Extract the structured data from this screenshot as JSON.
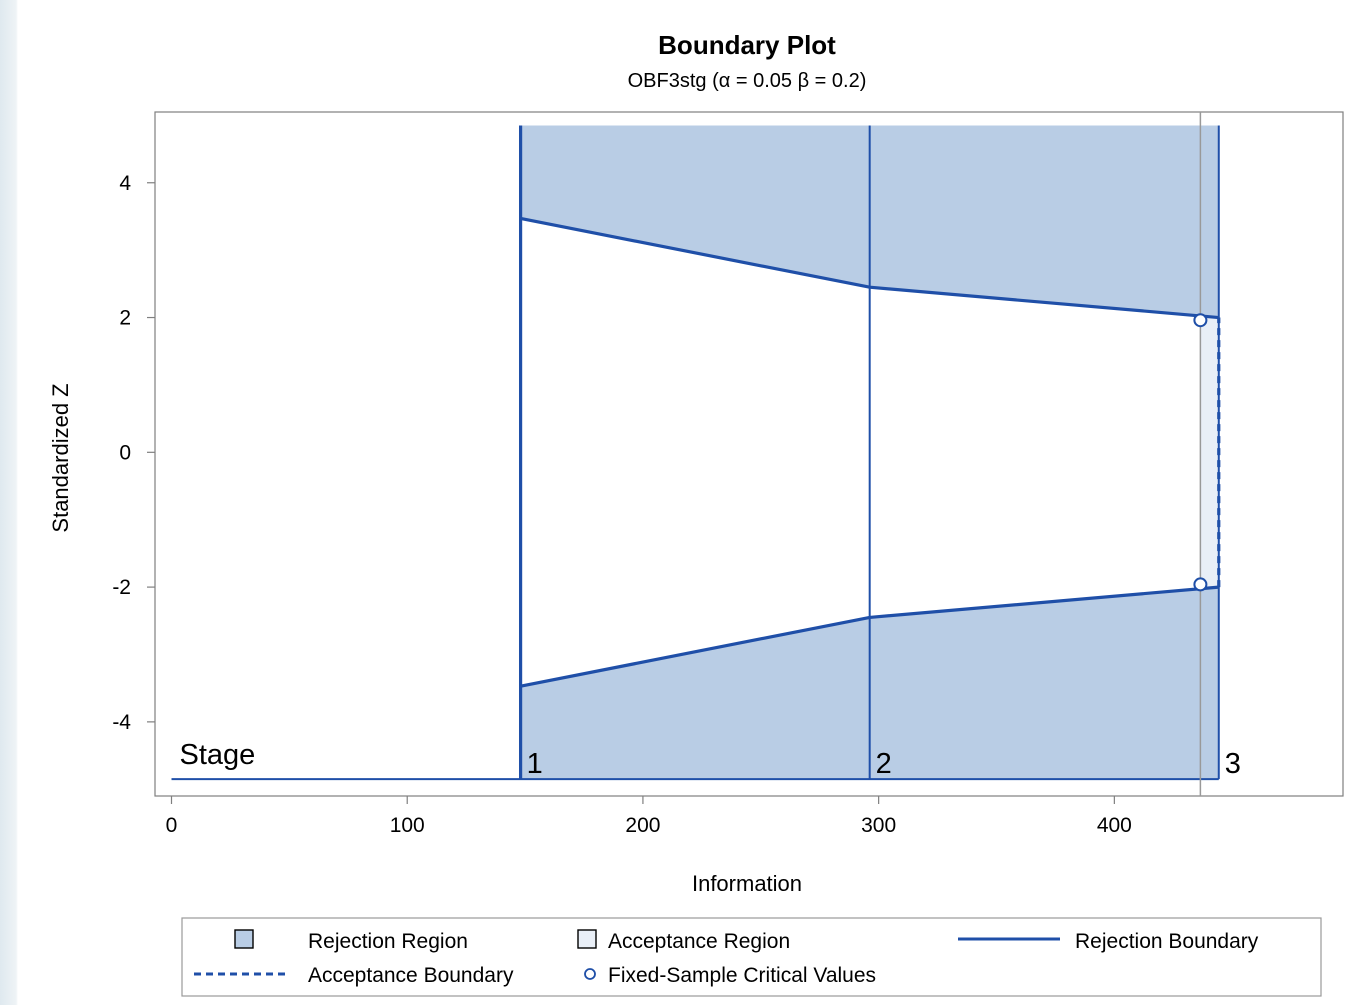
{
  "chart_data": {
    "type": "line",
    "title": "Boundary Plot",
    "subtitle": "OBF3stg (α = 0.05  β = 0.2)",
    "xlabel": "Information",
    "ylabel": "Standardized Z",
    "xlim": [
      -7,
      497
    ],
    "ylim": [
      -5.1,
      5.05
    ],
    "xticks": [
      0,
      100,
      200,
      300,
      400
    ],
    "yticks": [
      -4,
      -2,
      0,
      2,
      4
    ],
    "grid": false,
    "stage_label": "Stage",
    "stages": [
      {
        "label": "1",
        "x": 148.1
      },
      {
        "label": "2",
        "x": 296.2
      },
      {
        "label": "3",
        "x": 444.3
      }
    ],
    "fixed_sample_info": 436.5,
    "series": [
      {
        "name": "Rejection Boundary",
        "kind": "upper",
        "x": [
          148.1,
          296.2,
          444.3
        ],
        "y": [
          3.47,
          2.45,
          2.0
        ]
      },
      {
        "name": "Rejection Boundary",
        "kind": "lower",
        "x": [
          148.1,
          296.2,
          444.3
        ],
        "y": [
          -3.47,
          -2.45,
          -2.0
        ]
      },
      {
        "name": "Acceptance Boundary",
        "x": [
          444.3,
          444.3
        ],
        "y": [
          -2.0,
          2.0
        ]
      },
      {
        "name": "Fixed-Sample Critical Values",
        "x": [
          436.5,
          436.5
        ],
        "y": [
          1.96,
          -1.96
        ]
      }
    ],
    "region_top": 4.85,
    "region_bottom": -4.85,
    "legend_position": "bottom",
    "legend": [
      {
        "key": "rejection-region",
        "label": "Rejection Region"
      },
      {
        "key": "acceptance-region",
        "label": "Acceptance Region"
      },
      {
        "key": "rejection-boundary",
        "label": "Rejection Boundary"
      },
      {
        "key": "acceptance-boundary",
        "label": "Acceptance Boundary"
      },
      {
        "key": "fixed-sample",
        "label": "Fixed-Sample Critical Values"
      }
    ],
    "colors": {
      "boundary": "#1f4fa8",
      "region_fill": "#b9cde5",
      "acceptance_fill": "#e9eff7",
      "reference_line": "#999999",
      "axis": "#7f7f7f"
    }
  }
}
